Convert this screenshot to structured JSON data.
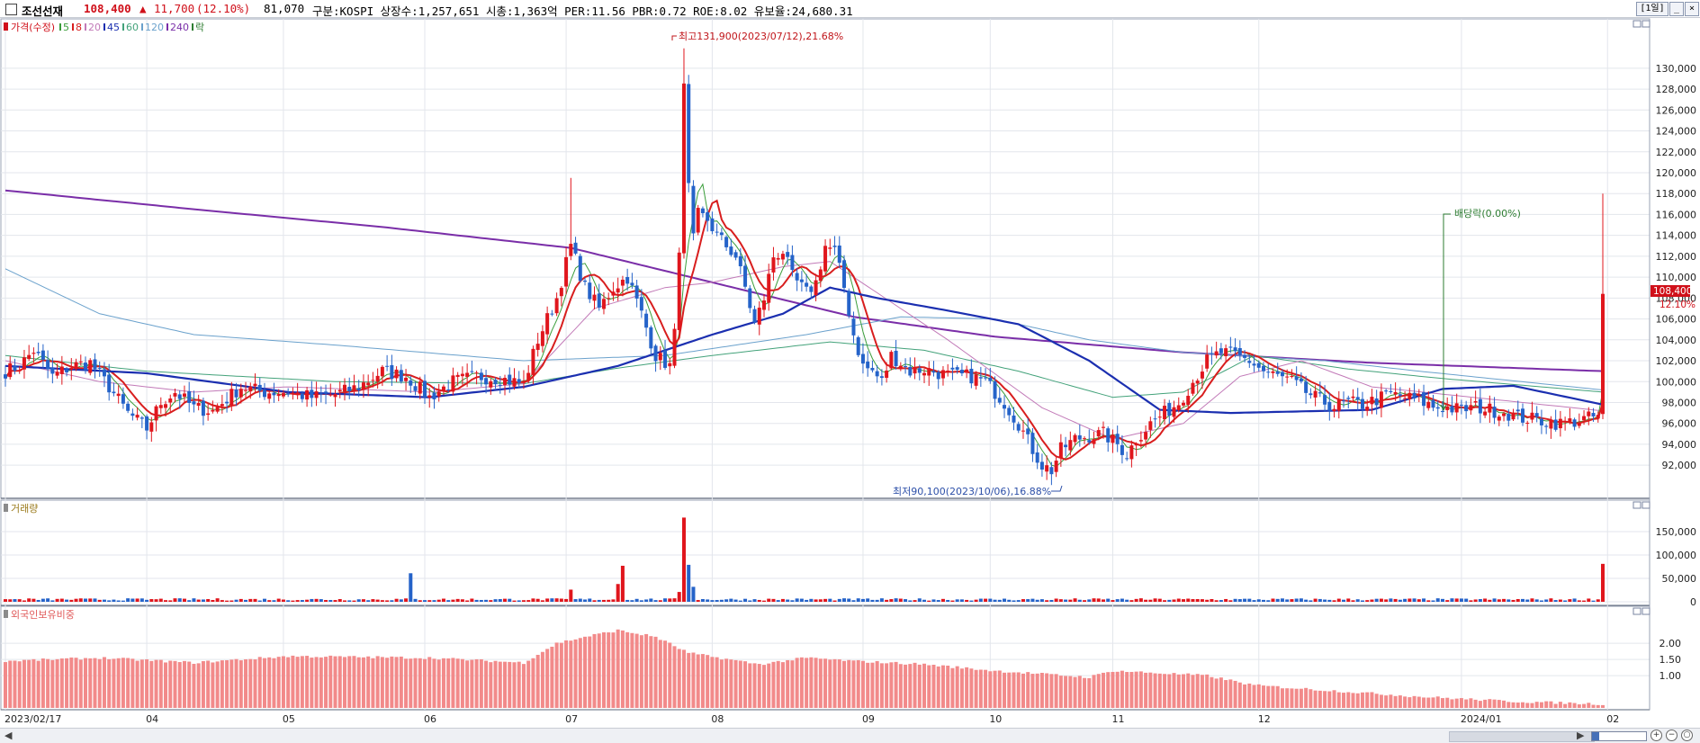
{
  "header": {
    "name": "조선선재",
    "price": "108,400",
    "arrow": "▲",
    "change": "11,700",
    "change_pct": "(12.10%)",
    "volume": "81,070",
    "info": "구분:KOSPI 상장수:1,257,651 시총:1,363억 PER:11.56 PBR:0.72 ROE:8.02 유보율:24,680.31",
    "period_button": "[1일]"
  },
  "colors": {
    "up": "#e0161d",
    "down": "#2563c9",
    "ma5": "#3a9d3a",
    "ma8": "#d81e1e",
    "ma20": "#c27ab8",
    "ma45": "#1b2fb0",
    "ma60": "#43a27a",
    "ma120": "#6aa1cc",
    "ma240": "#7a2ea8",
    "foreign_bar": "#f28a8a",
    "grid": "#e3e6ec",
    "annot_red": "#c0151a",
    "annot_green": "#2e7d32",
    "annot_blue": "#2c4fa8"
  },
  "legend": {
    "price": "가격(수정)",
    "ma5": "5",
    "ma8": "8",
    "ma20": "20",
    "ma45": "45",
    "ma60": "60",
    "ma120": "120",
    "ma240": "240",
    "dividend": "락"
  },
  "panels": {
    "volume_title": "거래량",
    "foreign_title": "외국인보유비중"
  },
  "chart_data": {
    "type": "candlestick",
    "title": "조선선재",
    "y_price_ticks": [
      92000,
      94000,
      96000,
      98000,
      100000,
      102000,
      104000,
      106000,
      108000,
      110000,
      112000,
      114000,
      116000,
      118000,
      120000,
      122000,
      124000,
      126000,
      128000,
      130000
    ],
    "y_price_labels": [
      "92,000",
      "94,000",
      "96,000",
      "98,000",
      "100,000",
      "102,000",
      "104,000",
      "106,000",
      "108,000",
      "110,000",
      "112,000",
      "114,000",
      "116,000",
      "118,000",
      "120,000",
      "122,000",
      "124,000",
      "126,000",
      "128,000",
      "130,000"
    ],
    "ylim_price": [
      89000,
      133000
    ],
    "y_volume_ticks": [
      0,
      50000,
      100000,
      150000
    ],
    "y_volume_labels": [
      "0",
      "50,000",
      "100,000",
      "150,000"
    ],
    "ylim_volume": [
      0,
      175000
    ],
    "y_foreign_ticks": [
      1.0,
      1.5,
      2.0
    ],
    "y_foreign_labels": [
      "1.00",
      "1.50",
      "2.00"
    ],
    "ylim_foreign": [
      0,
      2.7
    ],
    "x_labels": [
      "2023/02/17",
      "04",
      "05",
      "06",
      "07",
      "08",
      "09",
      "10",
      "11",
      "12",
      "2024/01",
      "02"
    ],
    "x_label_index": [
      0,
      30,
      59,
      89,
      119,
      150,
      182,
      209,
      235,
      266,
      309,
      340
    ],
    "last_price_label": "108,400",
    "last_change_label": "12.10%",
    "annotations": {
      "high": "최고131,900(2023/07/12),21.68%",
      "low": "최저90,100(2023/10/06),16.88%",
      "dividend": "배당락(0.00%)"
    },
    "price_anchors": [
      [
        0,
        101000
      ],
      [
        3,
        101500
      ],
      [
        6,
        103000
      ],
      [
        10,
        100500
      ],
      [
        14,
        101500
      ],
      [
        18,
        101800
      ],
      [
        22,
        99500
      ],
      [
        26,
        97000
      ],
      [
        30,
        95500
      ],
      [
        33,
        98000
      ],
      [
        36,
        99000
      ],
      [
        40,
        97500
      ],
      [
        44,
        97200
      ],
      [
        50,
        99500
      ],
      [
        55,
        99000
      ],
      [
        60,
        99000
      ],
      [
        65,
        98500
      ],
      [
        70,
        98800
      ],
      [
        75,
        99500
      ],
      [
        80,
        101000
      ],
      [
        85,
        100500
      ],
      [
        90,
        98500
      ],
      [
        95,
        100000
      ],
      [
        100,
        100500
      ],
      [
        105,
        100300
      ],
      [
        110,
        99800
      ],
      [
        113,
        104000
      ],
      [
        117,
        108000
      ],
      [
        120,
        113000
      ],
      [
        123,
        109000
      ],
      [
        126,
        107000
      ],
      [
        129,
        109000
      ],
      [
        132,
        110000
      ],
      [
        135,
        106500
      ],
      [
        138,
        102500
      ],
      [
        141,
        101500
      ],
      [
        142,
        104500
      ],
      [
        143,
        113000
      ],
      [
        144,
        128000
      ],
      [
        145,
        118500
      ],
      [
        146,
        113500
      ],
      [
        147,
        116000
      ],
      [
        149,
        115500
      ],
      [
        151,
        114000
      ],
      [
        153,
        113000
      ],
      [
        155,
        112000
      ],
      [
        157,
        109000
      ],
      [
        159,
        105500
      ],
      [
        161,
        108000
      ],
      [
        163,
        112000
      ],
      [
        165,
        112500
      ],
      [
        167,
        110000
      ],
      [
        170,
        108500
      ],
      [
        172,
        109500
      ],
      [
        174,
        113000
      ],
      [
        176,
        112500
      ],
      [
        178,
        109000
      ],
      [
        180,
        104500
      ],
      [
        182,
        101500
      ],
      [
        184,
        101000
      ],
      [
        186,
        100000
      ],
      [
        188,
        102500
      ],
      [
        190,
        101800
      ],
      [
        192,
        101000
      ],
      [
        195,
        101200
      ],
      [
        200,
        100600
      ],
      [
        205,
        100500
      ],
      [
        208,
        100000
      ],
      [
        212,
        98000
      ],
      [
        215,
        96000
      ],
      [
        218,
        93500
      ],
      [
        220,
        92000
      ],
      [
        222,
        91500
      ],
      [
        224,
        93500
      ],
      [
        227,
        94500
      ],
      [
        230,
        94800
      ],
      [
        233,
        95000
      ],
      [
        236,
        94000
      ],
      [
        238,
        93000
      ],
      [
        240,
        94500
      ],
      [
        243,
        96000
      ],
      [
        246,
        97000
      ],
      [
        249,
        98000
      ],
      [
        252,
        100000
      ],
      [
        255,
        102000
      ],
      [
        258,
        102800
      ],
      [
        261,
        102500
      ],
      [
        264,
        102000
      ],
      [
        267,
        101000
      ],
      [
        270,
        100500
      ],
      [
        273,
        100000
      ],
      [
        276,
        99000
      ],
      [
        279,
        98200
      ],
      [
        282,
        97600
      ],
      [
        285,
        98000
      ],
      [
        288,
        97800
      ],
      [
        291,
        98300
      ],
      [
        294,
        98800
      ],
      [
        297,
        98500
      ],
      [
        300,
        98200
      ],
      [
        303,
        97600
      ],
      [
        306,
        97500
      ],
      [
        309,
        97300
      ],
      [
        312,
        97600
      ],
      [
        315,
        97300
      ],
      [
        318,
        97100
      ],
      [
        321,
        96600
      ],
      [
        324,
        96400
      ],
      [
        327,
        96200
      ],
      [
        330,
        96000
      ],
      [
        333,
        96200
      ],
      [
        336,
        96500
      ],
      [
        338,
        96700
      ],
      [
        339,
        108400
      ]
    ],
    "candle_note": "OHLC per trading day, 340 sessions 2023/02/17 - 2024/02, last close 108,400",
    "ma_lines": {
      "ma5": "5-day moving average",
      "ma8": "8-day moving average",
      "ma20": "20-day moving average",
      "ma45": "45-day moving average",
      "ma60": "60-day moving average",
      "ma120": "120-day moving average",
      "ma240": "240-day moving average"
    },
    "ma240_anchors": [
      [
        0,
        118300
      ],
      [
        40,
        116500
      ],
      [
        80,
        114800
      ],
      [
        120,
        112800
      ],
      [
        150,
        109500
      ],
      [
        180,
        106200
      ],
      [
        210,
        104300
      ],
      [
        250,
        102800
      ],
      [
        290,
        101800
      ],
      [
        339,
        101000
      ]
    ],
    "ma120_anchors": [
      [
        0,
        110800
      ],
      [
        20,
        106500
      ],
      [
        40,
        104500
      ],
      [
        70,
        103500
      ],
      [
        110,
        102000
      ],
      [
        140,
        102500
      ],
      [
        170,
        104500
      ],
      [
        190,
        106200
      ],
      [
        210,
        106000
      ],
      [
        230,
        104000
      ],
      [
        250,
        102800
      ],
      [
        280,
        102000
      ],
      [
        300,
        101000
      ],
      [
        339,
        99200
      ]
    ],
    "ma60_anchors": [
      [
        0,
        102500
      ],
      [
        30,
        101000
      ],
      [
        70,
        100000
      ],
      [
        110,
        99800
      ],
      [
        130,
        101300
      ],
      [
        150,
        102500
      ],
      [
        175,
        103800
      ],
      [
        195,
        103000
      ],
      [
        215,
        101000
      ],
      [
        235,
        98500
      ],
      [
        250,
        99000
      ],
      [
        265,
        102500
      ],
      [
        285,
        101200
      ],
      [
        305,
        100300
      ],
      [
        339,
        99000
      ]
    ],
    "ma45_anchors": [
      [
        0,
        101500
      ],
      [
        30,
        100800
      ],
      [
        60,
        99000
      ],
      [
        90,
        98500
      ],
      [
        110,
        99500
      ],
      [
        130,
        101500
      ],
      [
        150,
        104500
      ],
      [
        165,
        106500
      ],
      [
        175,
        109000
      ],
      [
        185,
        108000
      ],
      [
        200,
        106800
      ],
      [
        215,
        105500
      ],
      [
        230,
        102000
      ],
      [
        245,
        97300
      ],
      [
        260,
        97000
      ],
      [
        290,
        97300
      ],
      [
        305,
        99300
      ],
      [
        320,
        99600
      ],
      [
        339,
        97800
      ]
    ],
    "ma20_anchors": [
      [
        0,
        102000
      ],
      [
        20,
        100000
      ],
      [
        40,
        99000
      ],
      [
        60,
        99500
      ],
      [
        90,
        99000
      ],
      [
        110,
        99800
      ],
      [
        125,
        107000
      ],
      [
        140,
        109000
      ],
      [
        150,
        109500
      ],
      [
        165,
        111000
      ],
      [
        175,
        111500
      ],
      [
        185,
        108500
      ],
      [
        200,
        104000
      ],
      [
        220,
        97500
      ],
      [
        235,
        94500
      ],
      [
        250,
        96000
      ],
      [
        262,
        100500
      ],
      [
        275,
        102000
      ],
      [
        290,
        99500
      ],
      [
        305,
        98800
      ],
      [
        339,
        97200
      ]
    ],
    "volume_values_sample": {
      "spike_1": 61000,
      "spike_2": 77000,
      "spike_3": 180000,
      "spike_4": 79000,
      "spike_last": 81070
    },
    "foreign_pct_anchors": [
      [
        0,
        1.45
      ],
      [
        20,
        1.55
      ],
      [
        40,
        1.4
      ],
      [
        60,
        1.6
      ],
      [
        90,
        1.55
      ],
      [
        110,
        1.4
      ],
      [
        117,
        2.0
      ],
      [
        123,
        2.2
      ],
      [
        130,
        2.4
      ],
      [
        138,
        2.2
      ],
      [
        145,
        1.7
      ],
      [
        160,
        1.35
      ],
      [
        170,
        1.55
      ],
      [
        180,
        1.45
      ],
      [
        195,
        1.35
      ],
      [
        210,
        1.15
      ],
      [
        230,
        0.95
      ],
      [
        235,
        1.15
      ],
      [
        255,
        1.0
      ],
      [
        265,
        0.7
      ],
      [
        285,
        0.5
      ],
      [
        300,
        0.35
      ],
      [
        320,
        0.2
      ],
      [
        339,
        0.12
      ]
    ]
  }
}
